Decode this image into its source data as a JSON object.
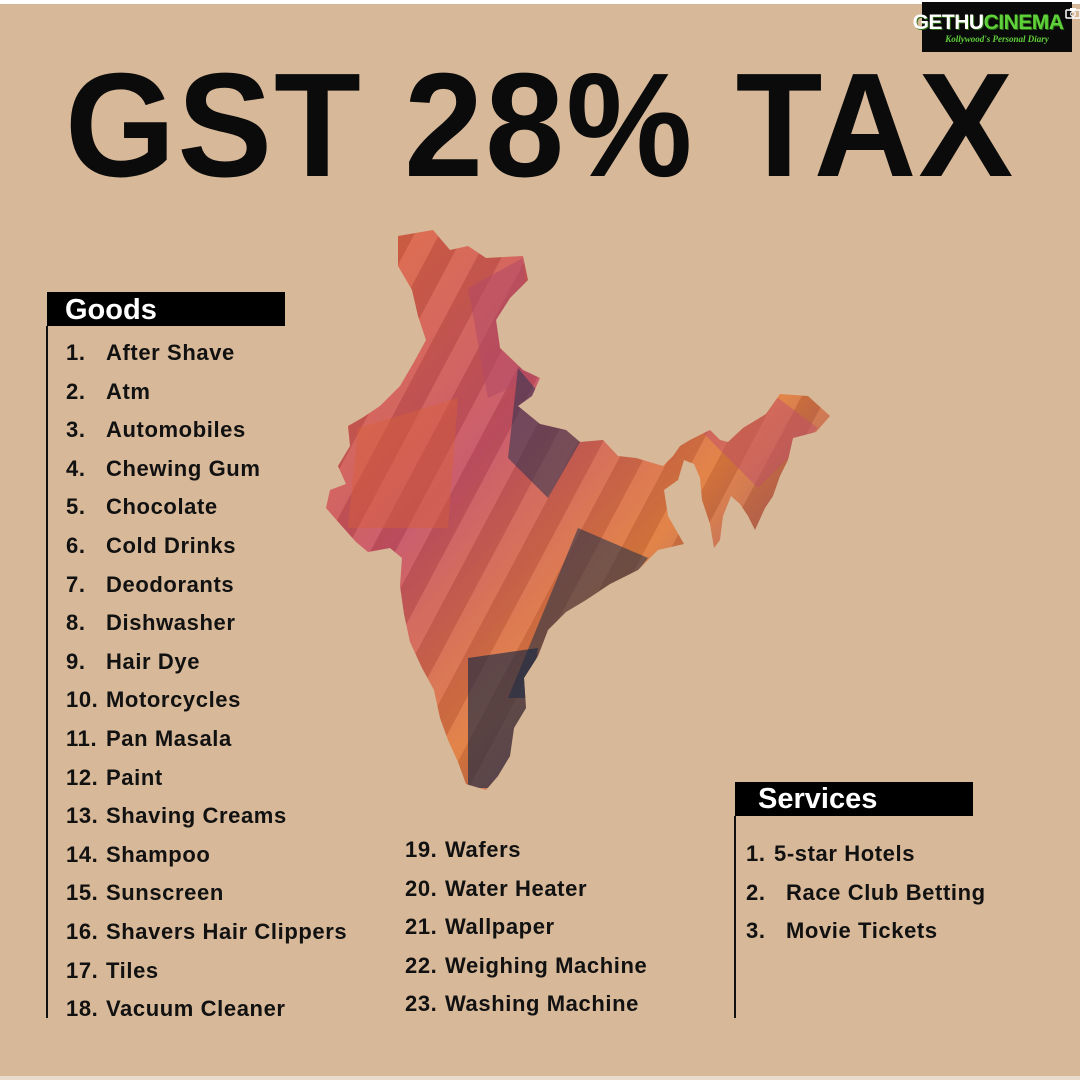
{
  "logo": {
    "word_a": "GETHU",
    "word_b": "CINEMA",
    "tagline": "Kollywood's Personal Diary"
  },
  "title": "GST 28% TAX",
  "colors": {
    "background": "#d7b898",
    "text": "#111111",
    "header_bg": "#000000",
    "logo_green": "#5fd13a"
  },
  "map": {
    "icon": "india-map-icon"
  },
  "goods": {
    "heading": "Goods",
    "items": [
      {
        "num": "1.",
        "label": "After Shave"
      },
      {
        "num": "2.",
        "label": "Atm"
      },
      {
        "num": "3.",
        "label": "Automobiles"
      },
      {
        "num": "4.",
        "label": "Chewing Gum"
      },
      {
        "num": "5.",
        "label": "Chocolate"
      },
      {
        "num": "6.",
        "label": "Cold Drinks"
      },
      {
        "num": "7.",
        "label": "Deodorants"
      },
      {
        "num": "8.",
        "label": "Dishwasher"
      },
      {
        "num": "9.",
        "label": "Hair Dye"
      },
      {
        "num": "10.",
        "label": "Motorcycles"
      },
      {
        "num": "11.",
        "label": "Pan Masala"
      },
      {
        "num": "12.",
        "label": "Paint"
      },
      {
        "num": "13.",
        "label": "Shaving Creams"
      },
      {
        "num": "14.",
        "label": "Shampoo"
      },
      {
        "num": "15.",
        "label": "Sunscreen"
      },
      {
        "num": "16.",
        "label": "Shavers Hair Clippers"
      },
      {
        "num": "17.",
        "label": "Tiles"
      },
      {
        "num": "18.",
        "label": "Vacuum Cleaner"
      }
    ],
    "items_col2": [
      {
        "num": "19.",
        "label": "Wafers"
      },
      {
        "num": "20.",
        "label": "Water Heater"
      },
      {
        "num": "21.",
        "label": "Wallpaper"
      },
      {
        "num": "22.",
        "label": "Weighing Machine"
      },
      {
        "num": "23.",
        "label": "Washing Machine"
      }
    ]
  },
  "services": {
    "heading": "Services",
    "items": [
      {
        "num": "1.",
        "label": "5-star Hotels"
      },
      {
        "num": "2.",
        "label": "Race Club Betting"
      },
      {
        "num": "3.",
        "label": "Movie Tickets"
      }
    ]
  }
}
